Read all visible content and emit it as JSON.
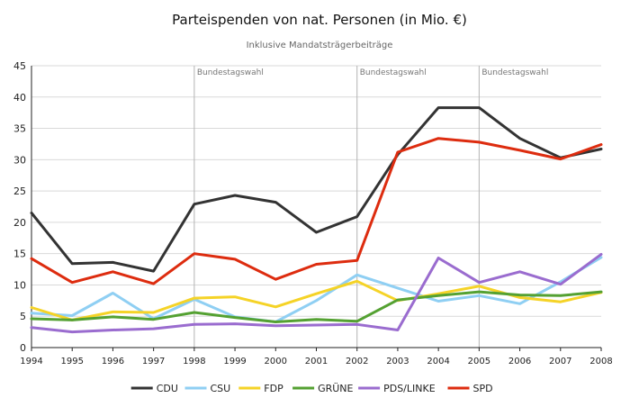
{
  "chart_data": {
    "type": "line",
    "title": "Parteispenden von nat. Personen (in Mio. €)",
    "subtitle": "Inklusive Mandatsträgerbeiträge",
    "xlabel": "",
    "ylabel": "",
    "x": [
      "1994",
      "1995",
      "1996",
      "1997",
      "1998",
      "1999",
      "2000",
      "2001",
      "2002",
      "2003",
      "2004",
      "2005",
      "2006",
      "2007",
      "2008"
    ],
    "ylim": [
      0,
      45
    ],
    "yticks": [
      0,
      5,
      10,
      15,
      20,
      25,
      30,
      35,
      40,
      45
    ],
    "grid": true,
    "legend_position": "bottom",
    "annotations": [
      {
        "x": "1998",
        "label": "Bundestagswahl"
      },
      {
        "x": "2002",
        "label": "Bundestagswahl"
      },
      {
        "x": "2005",
        "label": "Bundestagswahl"
      }
    ],
    "series": [
      {
        "name": "CDU",
        "color": "#333333",
        "values": [
          21.5,
          13.4,
          13.6,
          12.2,
          22.9,
          24.3,
          23.2,
          18.4,
          20.9,
          30.8,
          38.3,
          38.3,
          33.4,
          30.3,
          31.7
        ]
      },
      {
        "name": "CSU",
        "color": "#8fcff3",
        "values": [
          5.5,
          5.1,
          8.7,
          4.6,
          7.7,
          4.9,
          4.1,
          7.5,
          11.6,
          9.5,
          7.4,
          8.3,
          7.0,
          10.5,
          14.4
        ]
      },
      {
        "name": "FDP",
        "color": "#f5d327",
        "values": [
          6.4,
          4.4,
          5.7,
          5.6,
          7.9,
          8.1,
          6.5,
          8.6,
          10.6,
          7.5,
          8.6,
          9.8,
          8.0,
          7.3,
          8.8
        ]
      },
      {
        "name": "GRÜNE",
        "color": "#54a132",
        "values": [
          4.6,
          4.4,
          4.9,
          4.5,
          5.6,
          4.8,
          4.1,
          4.5,
          4.2,
          7.6,
          8.3,
          8.9,
          8.4,
          8.3,
          8.9
        ]
      },
      {
        "name": "PDS/LINKE",
        "color": "#9a6ccf",
        "values": [
          3.2,
          2.5,
          2.8,
          3.0,
          3.7,
          3.8,
          3.5,
          3.6,
          3.7,
          2.8,
          14.3,
          10.4,
          12.1,
          10.1,
          14.9
        ]
      },
      {
        "name": "SPD",
        "color": "#dd2c0f",
        "values": [
          14.2,
          10.4,
          12.1,
          10.2,
          15.0,
          14.1,
          10.9,
          13.3,
          13.9,
          31.2,
          33.4,
          32.8,
          31.5,
          30.1,
          32.4
        ]
      }
    ]
  }
}
